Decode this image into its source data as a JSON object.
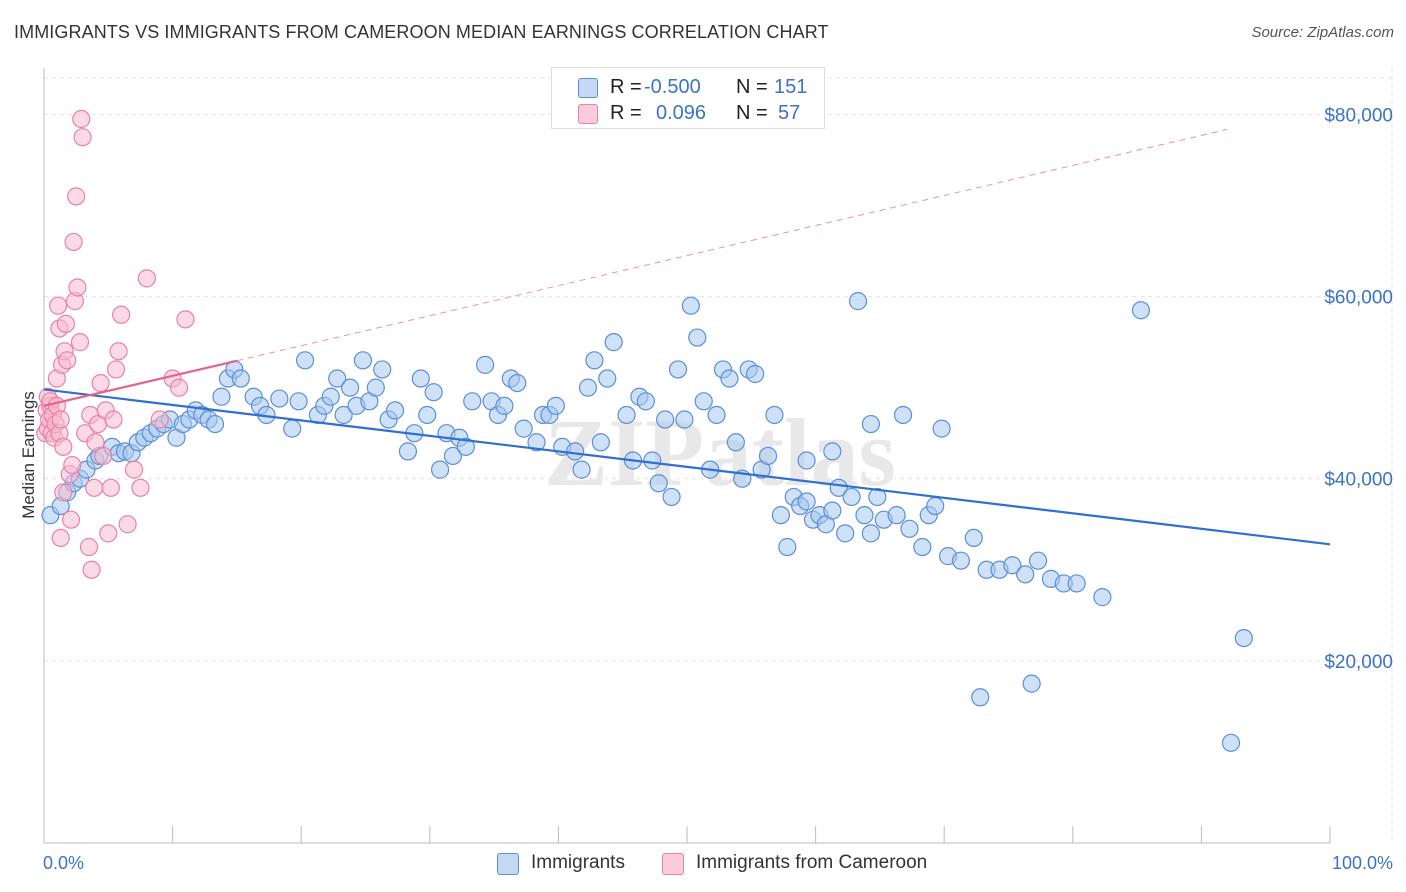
{
  "title": "IMMIGRANTS VS IMMIGRANTS FROM CAMEROON MEDIAN EARNINGS CORRELATION CHART",
  "source": "Source: ZipAtlas.com",
  "watermark": "ZIPatlas",
  "legend": {
    "rows": [
      {
        "r_label": "R =",
        "r_value": "-0.500",
        "n_label": "N =",
        "n_value": "151"
      },
      {
        "r_label": "R =",
        "r_value": "0.096",
        "n_label": "N =",
        "n_value": "57"
      }
    ]
  },
  "colors": {
    "blue_fill": "#a8c8f0",
    "blue_stroke": "#5b8fd6",
    "blue_line": "#2e6fcf",
    "pink_fill": "#f7bcd0",
    "pink_stroke": "#e882a6",
    "pink_line": "#e8608e",
    "grid": "#e3e3e3",
    "axis_label": "#3a73c8"
  },
  "chart_data": {
    "type": "scatter",
    "title": "IMMIGRANTS VS IMMIGRANTS FROM CAMEROON MEDIAN EARNINGS CORRELATION CHART",
    "ylabel": "Median Earnings",
    "xlabel": "",
    "xlim": [
      0,
      100
    ],
    "ylim": [
      0,
      84000
    ],
    "x_tick_labels": [
      "0.0%",
      "100.0%"
    ],
    "y_ticks": [
      20000,
      40000,
      60000,
      80000
    ],
    "y_tick_labels": [
      "$20,000",
      "$40,000",
      "$60,000",
      "$80,000"
    ],
    "grid": true,
    "legend_position": "bottom",
    "series": [
      {
        "name": "Immigrants",
        "r": -0.5,
        "n": 151,
        "trend": {
          "x": [
            0,
            100
          ],
          "y": [
            49800,
            32800
          ]
        },
        "points": [
          [
            0.5,
            36000
          ],
          [
            1.3,
            37000
          ],
          [
            1.8,
            38500
          ],
          [
            2.3,
            39500
          ],
          [
            2.8,
            40000
          ],
          [
            3.3,
            41000
          ],
          [
            4.0,
            42000
          ],
          [
            4.3,
            42500
          ],
          [
            5.3,
            43500
          ],
          [
            5.8,
            42800
          ],
          [
            6.3,
            43000
          ],
          [
            6.8,
            42800
          ],
          [
            7.3,
            44000
          ],
          [
            7.8,
            44500
          ],
          [
            8.3,
            45000
          ],
          [
            8.8,
            45500
          ],
          [
            9.3,
            46000
          ],
          [
            9.8,
            46500
          ],
          [
            10.3,
            44500
          ],
          [
            10.8,
            46000
          ],
          [
            11.3,
            46500
          ],
          [
            11.8,
            47500
          ],
          [
            12.3,
            47000
          ],
          [
            12.8,
            46500
          ],
          [
            13.3,
            46000
          ],
          [
            13.8,
            49000
          ],
          [
            14.3,
            51000
          ],
          [
            14.8,
            52000
          ],
          [
            15.3,
            51000
          ],
          [
            16.3,
            49000
          ],
          [
            16.8,
            48000
          ],
          [
            17.3,
            47000
          ],
          [
            18.3,
            48800
          ],
          [
            19.3,
            45500
          ],
          [
            19.8,
            48500
          ],
          [
            20.3,
            53000
          ],
          [
            21.3,
            47000
          ],
          [
            21.8,
            48000
          ],
          [
            22.3,
            49000
          ],
          [
            22.8,
            51000
          ],
          [
            23.3,
            47000
          ],
          [
            23.8,
            50000
          ],
          [
            24.3,
            48000
          ],
          [
            24.8,
            53000
          ],
          [
            25.3,
            48500
          ],
          [
            25.8,
            50000
          ],
          [
            26.3,
            52000
          ],
          [
            26.8,
            46500
          ],
          [
            27.3,
            47500
          ],
          [
            28.3,
            43000
          ],
          [
            28.8,
            45000
          ],
          [
            29.3,
            51000
          ],
          [
            29.8,
            47000
          ],
          [
            30.3,
            49500
          ],
          [
            30.8,
            41000
          ],
          [
            31.3,
            45000
          ],
          [
            31.8,
            42500
          ],
          [
            32.3,
            44500
          ],
          [
            32.8,
            43500
          ],
          [
            33.3,
            48500
          ],
          [
            34.3,
            52500
          ],
          [
            34.8,
            48500
          ],
          [
            35.3,
            47000
          ],
          [
            35.8,
            48000
          ],
          [
            36.3,
            51000
          ],
          [
            36.8,
            50500
          ],
          [
            37.3,
            45500
          ],
          [
            38.3,
            44000
          ],
          [
            38.8,
            47000
          ],
          [
            39.3,
            47000
          ],
          [
            39.8,
            48000
          ],
          [
            40.3,
            43500
          ],
          [
            41.3,
            43000
          ],
          [
            41.8,
            41000
          ],
          [
            42.3,
            50000
          ],
          [
            42.8,
            53000
          ],
          [
            43.3,
            44000
          ],
          [
            43.8,
            51000
          ],
          [
            44.3,
            55000
          ],
          [
            45.3,
            47000
          ],
          [
            45.8,
            42000
          ],
          [
            46.3,
            49000
          ],
          [
            46.8,
            48500
          ],
          [
            47.3,
            42000
          ],
          [
            47.8,
            39500
          ],
          [
            48.3,
            46500
          ],
          [
            48.8,
            38000
          ],
          [
            49.3,
            52000
          ],
          [
            49.8,
            46500
          ],
          [
            50.3,
            59000
          ],
          [
            50.8,
            55500
          ],
          [
            51.3,
            48500
          ],
          [
            51.8,
            41000
          ],
          [
            52.3,
            47000
          ],
          [
            52.8,
            52000
          ],
          [
            53.3,
            51000
          ],
          [
            53.8,
            44000
          ],
          [
            54.3,
            40000
          ],
          [
            54.8,
            52000
          ],
          [
            55.3,
            51500
          ],
          [
            55.8,
            41000
          ],
          [
            56.3,
            42500
          ],
          [
            56.8,
            47000
          ],
          [
            57.3,
            36000
          ],
          [
            57.8,
            32500
          ],
          [
            58.3,
            38000
          ],
          [
            58.8,
            37000
          ],
          [
            59.3,
            37500
          ],
          [
            59.8,
            35500
          ],
          [
            60.3,
            36000
          ],
          [
            60.8,
            35000
          ],
          [
            61.3,
            36500
          ],
          [
            61.8,
            39000
          ],
          [
            62.3,
            34000
          ],
          [
            62.8,
            38000
          ],
          [
            63.3,
            59500
          ],
          [
            63.8,
            36000
          ],
          [
            64.3,
            34000
          ],
          [
            64.8,
            38000
          ],
          [
            65.3,
            35500
          ],
          [
            66.3,
            36000
          ],
          [
            67.3,
            34500
          ],
          [
            68.3,
            32500
          ],
          [
            68.8,
            36000
          ],
          [
            69.3,
            37000
          ],
          [
            70.3,
            31500
          ],
          [
            71.3,
            31000
          ],
          [
            72.3,
            33500
          ],
          [
            73.3,
            30000
          ],
          [
            74.3,
            30000
          ],
          [
            75.3,
            30500
          ],
          [
            76.3,
            29500
          ],
          [
            77.3,
            31000
          ],
          [
            78.3,
            29000
          ],
          [
            79.3,
            28500
          ],
          [
            80.3,
            28500
          ],
          [
            82.3,
            27000
          ],
          [
            85.3,
            58500
          ],
          [
            72.8,
            16000
          ],
          [
            76.8,
            17500
          ],
          [
            92.3,
            11000
          ],
          [
            93.3,
            22500
          ],
          [
            69.8,
            45500
          ],
          [
            66.8,
            47000
          ],
          [
            64.3,
            46000
          ],
          [
            61.3,
            43000
          ],
          [
            59.3,
            42000
          ]
        ]
      },
      {
        "name": "Immigrants from Cameroon",
        "r": 0.096,
        "n": 57,
        "trend": {
          "x": [
            0,
            100
          ],
          "y": [
            48000,
            81000
          ]
        },
        "points": [
          [
            0.1,
            45000
          ],
          [
            0.2,
            47500
          ],
          [
            0.3,
            45500
          ],
          [
            0.3,
            49000
          ],
          [
            0.4,
            46500
          ],
          [
            0.5,
            48000
          ],
          [
            0.5,
            48500
          ],
          [
            0.6,
            45000
          ],
          [
            0.7,
            47000
          ],
          [
            0.8,
            44500
          ],
          [
            0.9,
            46000
          ],
          [
            1.0,
            48000
          ],
          [
            1.0,
            51000
          ],
          [
            1.1,
            59000
          ],
          [
            1.2,
            45000
          ],
          [
            1.2,
            56500
          ],
          [
            1.3,
            33500
          ],
          [
            1.3,
            46500
          ],
          [
            1.4,
            52500
          ],
          [
            1.5,
            43500
          ],
          [
            1.5,
            38500
          ],
          [
            1.6,
            54000
          ],
          [
            1.7,
            57000
          ],
          [
            1.8,
            53000
          ],
          [
            2.0,
            40500
          ],
          [
            2.1,
            35500
          ],
          [
            2.2,
            41500
          ],
          [
            2.3,
            66000
          ],
          [
            2.4,
            59500
          ],
          [
            2.5,
            71000
          ],
          [
            2.6,
            61000
          ],
          [
            2.8,
            55000
          ],
          [
            2.9,
            79500
          ],
          [
            3.0,
            77500
          ],
          [
            3.2,
            45000
          ],
          [
            3.5,
            32500
          ],
          [
            3.6,
            47000
          ],
          [
            3.7,
            30000
          ],
          [
            3.9,
            39000
          ],
          [
            4.0,
            44000
          ],
          [
            4.2,
            46000
          ],
          [
            4.4,
            50500
          ],
          [
            4.6,
            42500
          ],
          [
            4.8,
            47500
          ],
          [
            5.0,
            34000
          ],
          [
            5.2,
            39000
          ],
          [
            5.4,
            46500
          ],
          [
            5.6,
            52000
          ],
          [
            5.8,
            54000
          ],
          [
            6.0,
            58000
          ],
          [
            6.5,
            35000
          ],
          [
            7.0,
            41000
          ],
          [
            7.5,
            39000
          ],
          [
            8.0,
            62000
          ],
          [
            9.0,
            46500
          ],
          [
            10.0,
            51000
          ],
          [
            10.5,
            50000
          ],
          [
            11.0,
            57500
          ]
        ]
      }
    ]
  },
  "bottom_legend": [
    "Immigrants",
    "Immigrants from Cameroon"
  ]
}
